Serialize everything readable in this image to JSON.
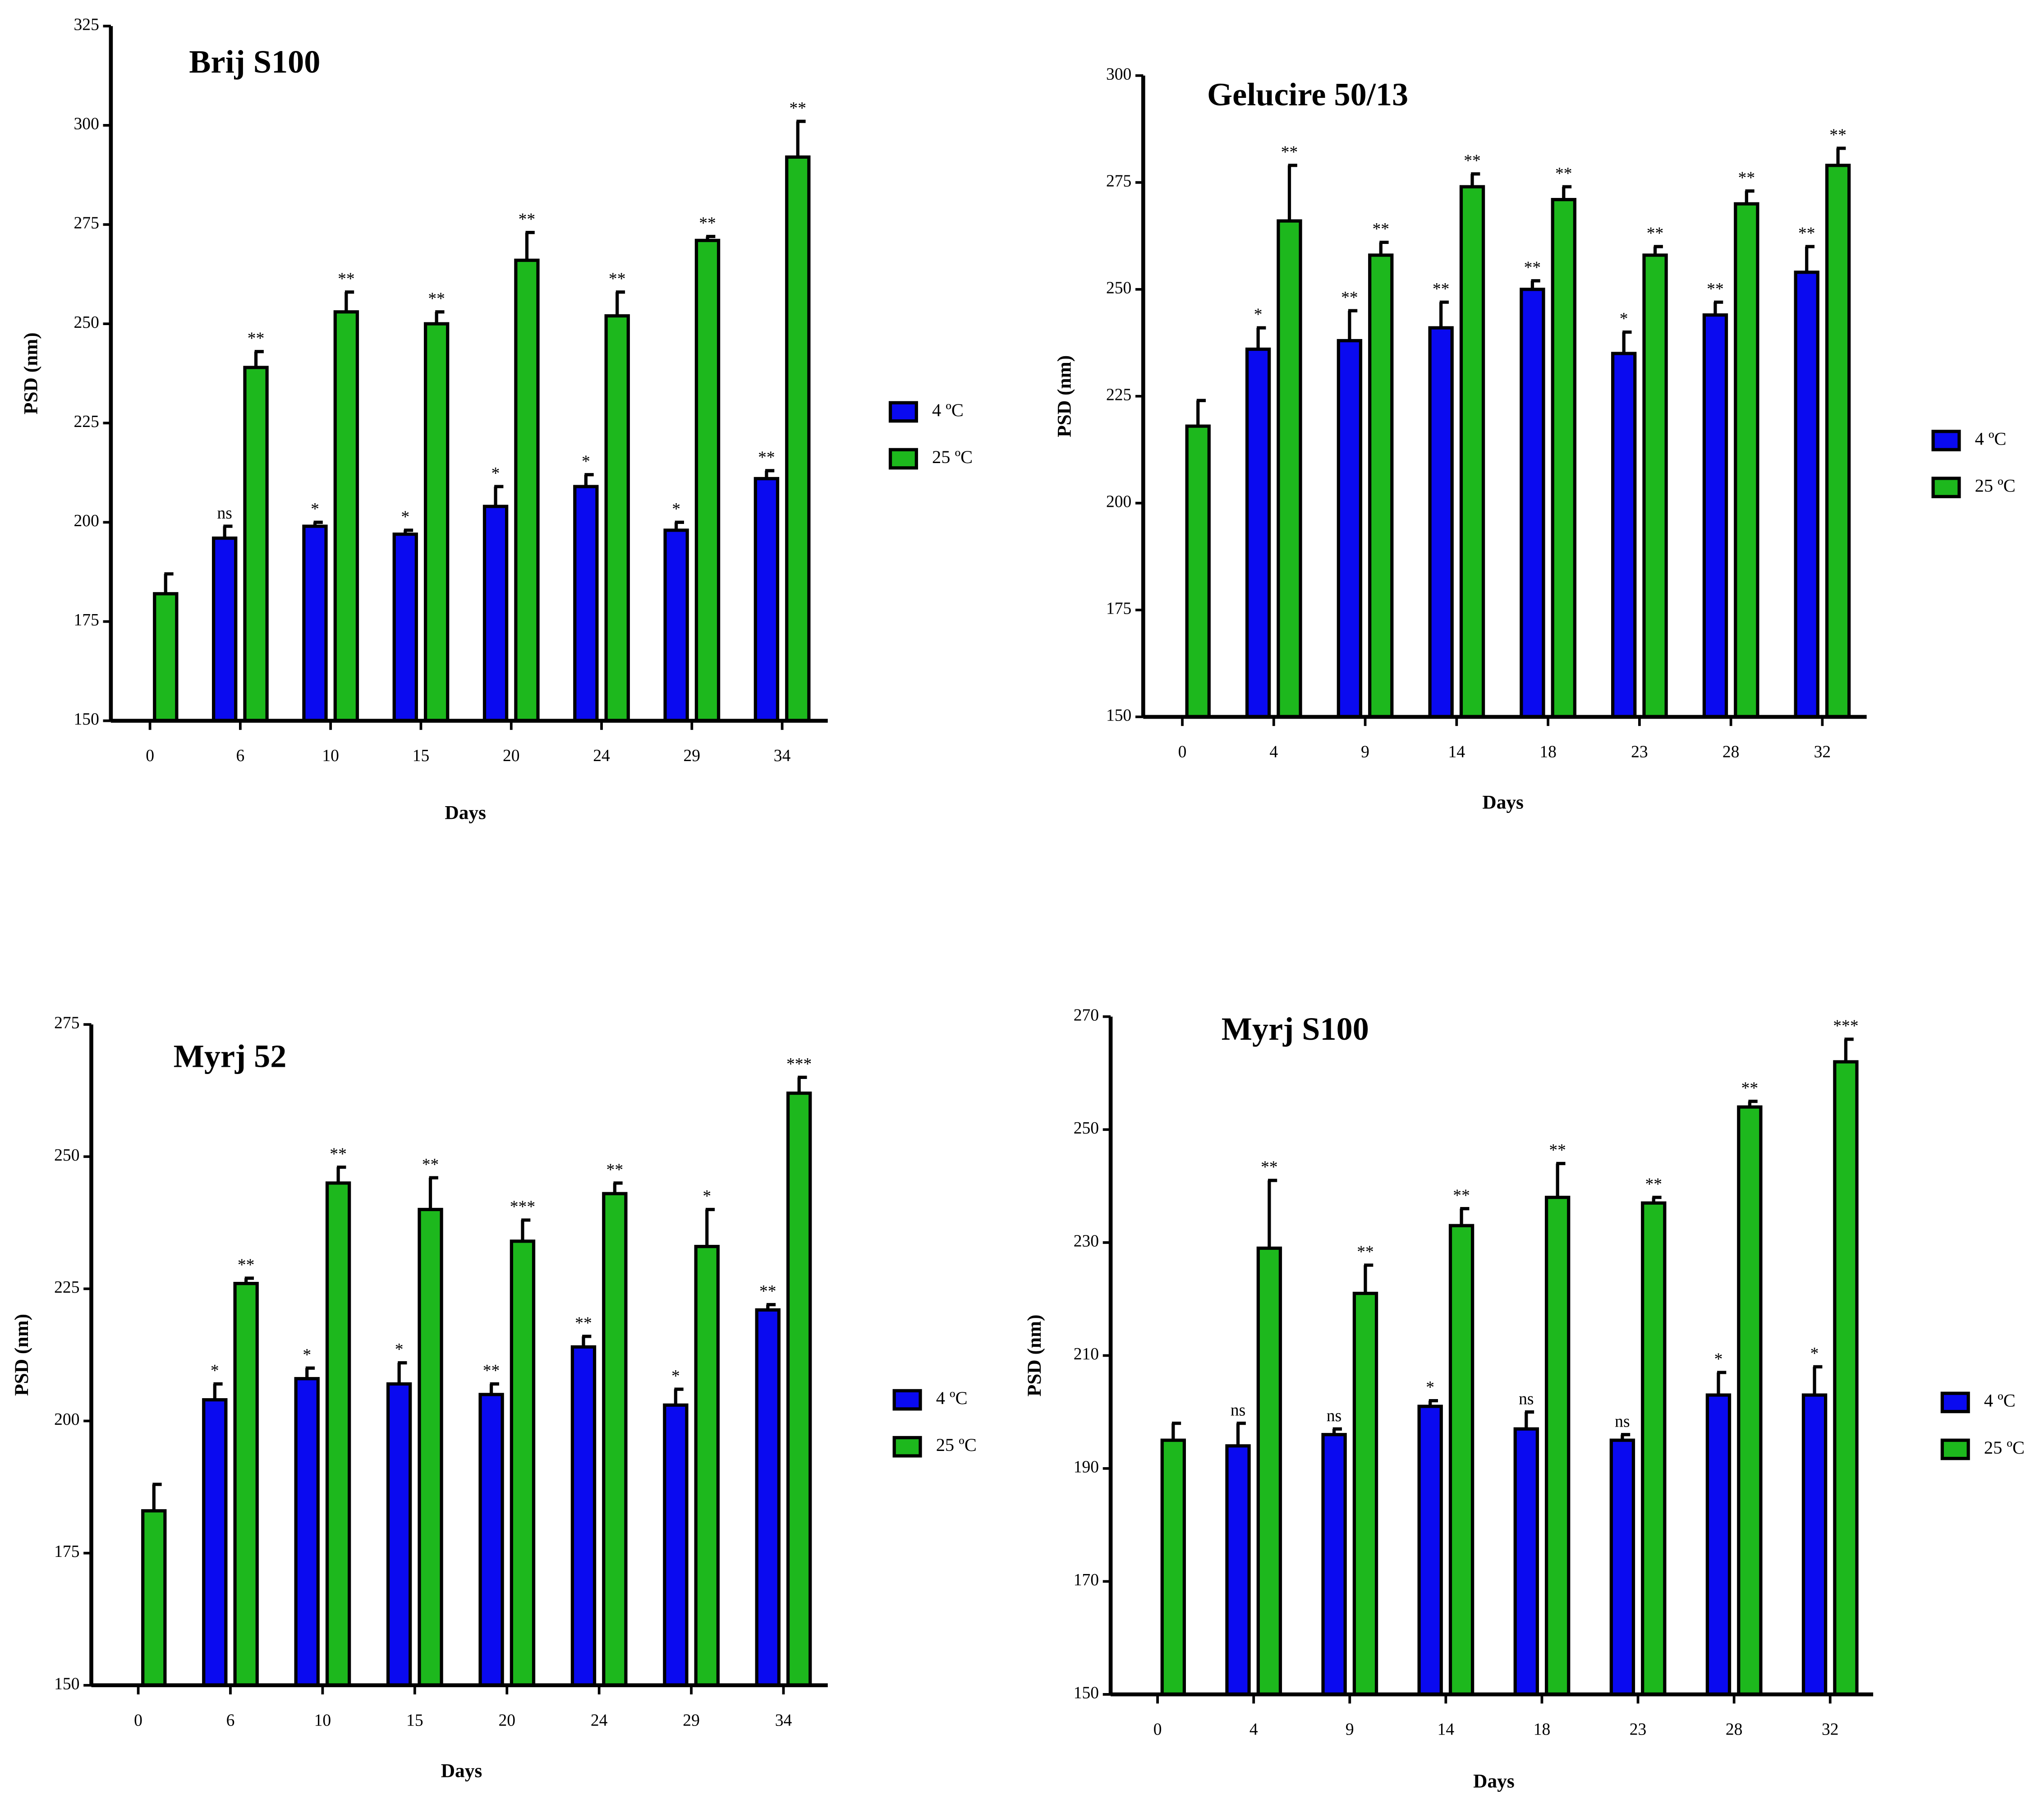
{
  "chart_data": [
    {
      "type": "bar",
      "title": "Brij S100",
      "x_label": "Days",
      "y_label": "PSD (nm)",
      "categories": [
        "0",
        "6",
        "10",
        "15",
        "20",
        "24",
        "29",
        "34"
      ],
      "series": [
        {
          "name": "4 ºC",
          "color": "#0a0af0",
          "values": [
            null,
            196,
            199,
            197,
            204,
            209,
            198,
            211
          ],
          "errors": [
            null,
            3,
            1,
            1,
            5,
            3,
            2,
            2
          ],
          "annotations": [
            null,
            "ns",
            "*",
            "*",
            "*",
            "*",
            "*",
            "**"
          ]
        },
        {
          "name": "25 ºC",
          "color": "#1db81d",
          "values": [
            182,
            239,
            253,
            250,
            266,
            252,
            271,
            292
          ],
          "errors": [
            5,
            4,
            5,
            3,
            7,
            6,
            1,
            9
          ],
          "annotations": [
            null,
            "**",
            "**",
            "**",
            "**",
            "**",
            "**",
            "**"
          ]
        }
      ],
      "ylim": [
        150,
        325
      ],
      "yticks": [
        150,
        175,
        200,
        225,
        250,
        275,
        300,
        325
      ]
    },
    {
      "type": "bar",
      "title": "Gelucire 50/13",
      "x_label": "Days",
      "y_label": "PSD (nm)",
      "categories": [
        "0",
        "4",
        "9",
        "14",
        "18",
        "23",
        "28",
        "32"
      ],
      "series": [
        {
          "name": "4 ºC",
          "color": "#0a0af0",
          "values": [
            null,
            236,
            238,
            241,
            250,
            235,
            244,
            254
          ],
          "errors": [
            null,
            5,
            7,
            6,
            2,
            5,
            3,
            6
          ],
          "annotations": [
            null,
            "*",
            "**",
            "**",
            "**",
            "*",
            "**",
            "**"
          ]
        },
        {
          "name": "25 ºC",
          "color": "#1db81d",
          "values": [
            218,
            266,
            258,
            274,
            271,
            258,
            270,
            279
          ],
          "errors": [
            6,
            13,
            3,
            3,
            3,
            2,
            3,
            4
          ],
          "annotations": [
            null,
            "**",
            "**",
            "**",
            "**",
            "**",
            "**",
            "**"
          ]
        }
      ],
      "ylim": [
        150,
        300
      ],
      "yticks": [
        150,
        175,
        200,
        225,
        250,
        275,
        300
      ]
    },
    {
      "type": "bar",
      "title": "Myrj 52",
      "x_label": "Days",
      "y_label": "PSD (nm)",
      "categories": [
        "0",
        "6",
        "10",
        "15",
        "20",
        "24",
        "29",
        "34"
      ],
      "series": [
        {
          "name": "4 ºC",
          "color": "#0a0af0",
          "values": [
            null,
            204,
            208,
            207,
            205,
            214,
            203,
            221
          ],
          "errors": [
            null,
            3,
            2,
            4,
            2,
            2,
            3,
            1
          ],
          "annotations": [
            null,
            "*",
            "*",
            "*",
            "**",
            "**",
            "*",
            "**"
          ]
        },
        {
          "name": "25 ºC",
          "color": "#1db81d",
          "values": [
            183,
            226,
            245,
            240,
            234,
            243,
            233,
            262
          ],
          "errors": [
            5,
            1,
            3,
            6,
            4,
            2,
            7,
            3
          ],
          "annotations": [
            null,
            "**",
            "**",
            "**",
            "***",
            "**",
            "*",
            "***"
          ]
        }
      ],
      "ylim": [
        150,
        275
      ],
      "yticks": [
        150,
        175,
        200,
        225,
        250,
        275
      ]
    },
    {
      "type": "bar",
      "title": "Myrj S100",
      "x_label": "Days",
      "y_label": "PSD (nm)",
      "categories": [
        "0",
        "4",
        "9",
        "14",
        "18",
        "23",
        "28",
        "32"
      ],
      "series": [
        {
          "name": "4 ºC",
          "color": "#0a0af0",
          "values": [
            null,
            194,
            196,
            201,
            197,
            195,
            203,
            203
          ],
          "errors": [
            null,
            4,
            1,
            1,
            3,
            1,
            4,
            5
          ],
          "annotations": [
            null,
            "ns",
            "ns",
            "*",
            "ns",
            "ns",
            "*",
            "*"
          ]
        },
        {
          "name": "25 ºC",
          "color": "#1db81d",
          "values": [
            195,
            229,
            221,
            233,
            238,
            237,
            254,
            262
          ],
          "errors": [
            3,
            12,
            5,
            3,
            6,
            1,
            1,
            4
          ],
          "annotations": [
            null,
            "**",
            "**",
            "**",
            "**",
            "**",
            "**",
            "***"
          ]
        }
      ],
      "ylim": [
        150,
        270
      ],
      "yticks": [
        150,
        170,
        190,
        210,
        230,
        250,
        270
      ]
    }
  ]
}
